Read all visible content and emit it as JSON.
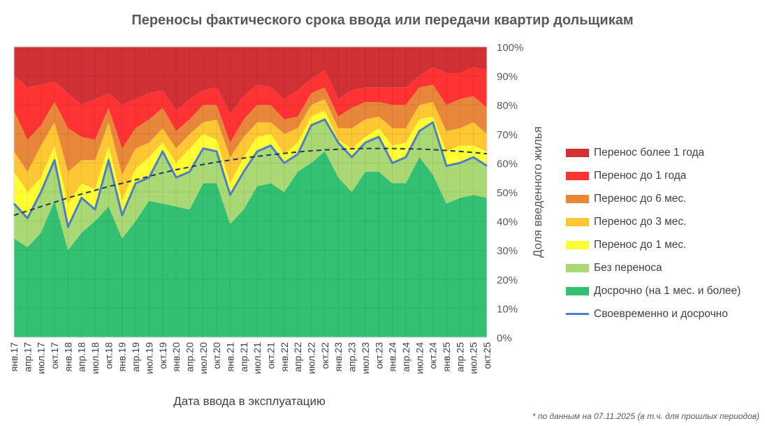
{
  "title": "Переносы фактического срока ввода или передачи квартир дольщикам",
  "footnote": "* по данным на 07.11.2025 (в т.ч. для прошлых периодов)",
  "chart_data": {
    "type": "area",
    "stacked": true,
    "title": "Переносы фактического срока ввода или передачи квартир дольщикам",
    "xlabel": "Дата ввода в эксплуатацию",
    "ylabel": "Доля введенного жилья",
    "ylim": [
      0,
      100
    ],
    "y_ticks": [
      "0%",
      "10%",
      "20%",
      "30%",
      "40%",
      "50%",
      "60%",
      "70%",
      "80%",
      "90%",
      "100%"
    ],
    "y_axis_side": "right",
    "grid": true,
    "legend_placement": "right",
    "categories": [
      "янв.17",
      "апр.17",
      "июл.17",
      "окт.17",
      "янв.18",
      "апр.18",
      "июл.18",
      "окт.18",
      "янв.19",
      "апр.19",
      "июл.19",
      "окт.19",
      "янв.20",
      "апр.20",
      "июл.20",
      "окт.20",
      "янв.21",
      "апр.21",
      "июл.21",
      "окт.21",
      "янв.22",
      "апр.22",
      "июл.22",
      "окт.22",
      "янв.23",
      "апр.23",
      "июл.23",
      "окт.23",
      "янв.24",
      "апр.24",
      "июл.24",
      "окт.24",
      "янв.25",
      "апр.25",
      "июл.25",
      "окт.25"
    ],
    "series": [
      {
        "name": "Досрочно (на 1 мес. и более)",
        "color": "#33C072",
        "values": [
          34,
          31,
          36,
          47,
          30,
          36,
          40,
          45,
          34,
          40,
          47,
          46,
          45,
          44,
          53,
          53,
          39,
          44,
          52,
          53,
          50,
          57,
          60,
          64,
          55,
          50,
          57,
          57,
          53,
          53,
          62,
          56,
          46,
          48,
          49,
          48
        ]
      },
      {
        "name": "Без переноса",
        "color": "#A9D874",
        "values": [
          12,
          10,
          14,
          14,
          8,
          12,
          4,
          16,
          8,
          13,
          8,
          18,
          10,
          13,
          12,
          11,
          10,
          13,
          12,
          13,
          10,
          6,
          13,
          11,
          12,
          12,
          10,
          12,
          7,
          9,
          9,
          18,
          13,
          12,
          13,
          11
        ]
      },
      {
        "name": "Перенос до 1 мес.",
        "color": "#FFFF33",
        "values": [
          11,
          9,
          5,
          5,
          8,
          5,
          7,
          5,
          5,
          5,
          7,
          3,
          5,
          8,
          5,
          4,
          4,
          5,
          5,
          4,
          3,
          4,
          3,
          3,
          1,
          3,
          2,
          3,
          6,
          5,
          4,
          2,
          5,
          6,
          4,
          5
        ]
      },
      {
        "name": "Перенос до 3 мес.",
        "color": "#FFC733",
        "values": [
          7,
          7,
          11,
          8,
          11,
          8,
          10,
          8,
          9,
          7,
          5,
          5,
          5,
          5,
          4,
          7,
          9,
          7,
          5,
          4,
          7,
          5,
          4,
          4,
          4,
          7,
          6,
          4,
          6,
          5,
          5,
          5,
          7,
          6,
          8,
          6
        ]
      },
      {
        "name": "Перенос до 6 мес.",
        "color": "#E8873A",
        "values": [
          14,
          11,
          7,
          7,
          15,
          8,
          7,
          5,
          9,
          7,
          8,
          7,
          6,
          5,
          6,
          5,
          5,
          6,
          6,
          6,
          5,
          4,
          4,
          4,
          4,
          7,
          6,
          5,
          8,
          8,
          6,
          6,
          9,
          10,
          9,
          9
        ]
      },
      {
        "name": "Перенос до 1 года",
        "color": "#FF3333",
        "values": [
          12,
          18,
          14,
          7,
          12,
          11,
          14,
          5,
          15,
          10,
          9,
          6,
          7,
          7,
          5,
          6,
          10,
          8,
          7,
          6,
          7,
          9,
          5,
          6,
          6,
          6,
          5,
          5,
          6,
          6,
          4,
          6,
          11,
          9,
          10,
          13
        ]
      },
      {
        "name": "Перенос более 1 года",
        "color": "#CF3135",
        "values": [
          10,
          14,
          13,
          12,
          16,
          20,
          18,
          16,
          20,
          18,
          16,
          15,
          22,
          18,
          15,
          14,
          23,
          17,
          13,
          14,
          18,
          15,
          11,
          8,
          18,
          15,
          14,
          14,
          14,
          14,
          10,
          7,
          9,
          9,
          7,
          8
        ]
      }
    ],
    "line_series": {
      "name": "Своевременно и досрочно",
      "color": "#4F7EC8",
      "composition": [
        "Досрочно (на 1 мес. и более)",
        "Без переноса"
      ]
    },
    "trend": {
      "color": "#1F3864",
      "style": "dashed",
      "values": [
        42,
        43.5,
        45,
        46.5,
        48,
        49.3,
        50.6,
        51.9,
        53,
        54.2,
        55.4,
        56.6,
        57.7,
        58.6,
        59.5,
        60.3,
        61,
        61.7,
        62.3,
        62.8,
        63.3,
        63.8,
        64.2,
        64.5,
        64.7,
        64.9,
        65,
        65,
        65,
        64.9,
        64.8,
        64.6,
        64.3,
        64,
        63.6,
        63.2
      ]
    },
    "legend_order": [
      "Перенос более 1 года",
      "Перенос до 1 года",
      "Перенос до 6 мес.",
      "Перенос до 3 мес.",
      "Перенос до 1 мес.",
      "Без переноса",
      "Досрочно (на 1 мес. и более)",
      "Своевременно и досрочно"
    ]
  }
}
